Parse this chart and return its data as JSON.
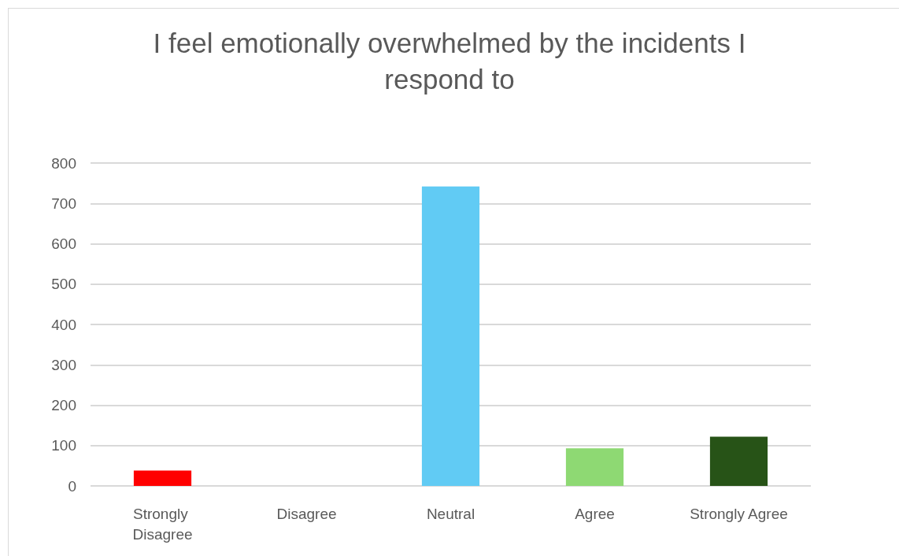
{
  "chart_data": {
    "type": "bar",
    "title": "I feel emotionally overwhelmed by the incidents I respond to",
    "categories": [
      "Strongly Disagree",
      "Disagree",
      "Neutral",
      "Agree",
      "Strongly Agree"
    ],
    "values": [
      38,
      0,
      742,
      93,
      122
    ],
    "colors": [
      "#ff0000",
      "#c49a00",
      "#61cbf4",
      "#8ed973",
      "#275317"
    ],
    "ylim": [
      0,
      800
    ],
    "yticks": [
      0,
      100,
      200,
      300,
      400,
      500,
      600,
      700,
      800
    ],
    "grid": "y"
  }
}
